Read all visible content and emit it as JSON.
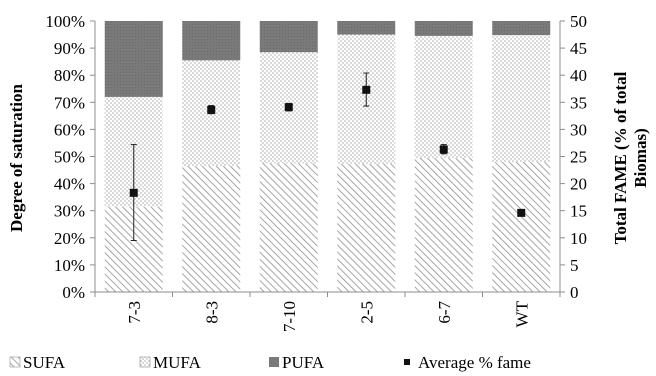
{
  "chart_data": {
    "type": "bar",
    "stacked": true,
    "categories": [
      "7-3",
      "8-3",
      "7-10",
      "2-5",
      "6-7",
      "WT"
    ],
    "series": [
      {
        "name": "SUFA",
        "values": [
          31.5,
          46.5,
          47.5,
          47.3,
          49.5,
          48.0
        ],
        "pattern": "diagonal-hatch"
      },
      {
        "name": "MUFA",
        "values": [
          40.5,
          39.0,
          41.0,
          47.7,
          45.0,
          46.8
        ],
        "pattern": "dots"
      },
      {
        "name": "PUFA",
        "values": [
          28.0,
          14.5,
          11.5,
          5.0,
          5.5,
          5.2
        ],
        "pattern": "solid-gray"
      }
    ],
    "secondary_series": {
      "name": "Average % fame",
      "marker": "square",
      "values": [
        18.3,
        33.6,
        34.1,
        37.3,
        26.3,
        14.6
      ],
      "error_low": [
        9.5,
        32.9,
        33.4,
        34.3,
        25.5,
        14.6
      ],
      "error_high": [
        27.2,
        34.4,
        34.8,
        40.4,
        27.2,
        14.6
      ]
    },
    "ylabel": "Degree of saturation",
    "y2label_line1": "Total FAME (% of total",
    "y2label_line2": "Biomas)",
    "ylim": [
      0,
      100
    ],
    "y2lim": [
      0,
      50
    ],
    "y_ticks": [
      "0%",
      "10%",
      "20%",
      "30%",
      "40%",
      "50%",
      "60%",
      "70%",
      "80%",
      "90%",
      "100%"
    ],
    "y2_ticks": [
      "0",
      "5",
      "10",
      "15",
      "20",
      "25",
      "30",
      "35",
      "40",
      "45",
      "50"
    ],
    "legend_position": "bottom",
    "grid": false,
    "colors": {
      "pufa": "#7a7a7a",
      "hatch": "#8f8f8f",
      "dots": "#8a8a8a",
      "marker": "#111111"
    }
  }
}
